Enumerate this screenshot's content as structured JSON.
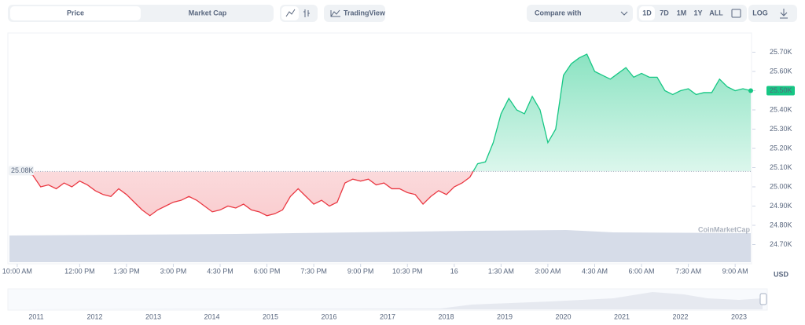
{
  "toolbar": {
    "tabs": [
      "Price",
      "Market Cap"
    ],
    "tradingview": "TradingView",
    "compare": "Compare with",
    "ranges": [
      "1D",
      "7D",
      "1M",
      "1Y",
      "ALL"
    ],
    "log": "LOG"
  },
  "chart_data": {
    "type": "line",
    "values": [
      25070,
      25070,
      25070,
      25060,
      25000,
      25010,
      24990,
      25020,
      25000,
      25030,
      25010,
      24980,
      24960,
      24950,
      24990,
      24960,
      24920,
      24880,
      24850,
      24880,
      24900,
      24920,
      24930,
      24950,
      24930,
      24900,
      24870,
      24880,
      24900,
      24890,
      24910,
      24880,
      24870,
      24850,
      24860,
      24880,
      24950,
      24990,
      24950,
      24910,
      24930,
      24900,
      24920,
      25020,
      25040,
      25030,
      25040,
      25010,
      25020,
      24990,
      24990,
      24970,
      24960,
      24910,
      24950,
      24980,
      24960,
      25000,
      25020,
      25050,
      25120,
      25130,
      25230,
      25380,
      25460,
      25400,
      25380,
      25470,
      25400,
      25230,
      25300,
      25580,
      25640,
      25670,
      25690,
      25600,
      25580,
      25560,
      25590,
      25620,
      25570,
      25590,
      25570,
      25570,
      25500,
      25480,
      25500,
      25510,
      25480,
      25490,
      25490,
      25560,
      25520,
      25500,
      25510,
      25500
    ],
    "xticks": [
      {
        "value": 1,
        "label": "10:00 AM"
      },
      {
        "value": 9,
        "label": "12:00 PM"
      },
      {
        "value": 15,
        "label": "1:30 PM"
      },
      {
        "value": 21,
        "label": "3:00 PM"
      },
      {
        "value": 27,
        "label": "4:30 PM"
      },
      {
        "value": 33,
        "label": "6:00 PM"
      },
      {
        "value": 39,
        "label": "7:30 PM"
      },
      {
        "value": 45,
        "label": "9:00 PM"
      },
      {
        "value": 51,
        "label": "10:30 PM"
      },
      {
        "value": 57,
        "label": "16"
      },
      {
        "value": 63,
        "label": "1:30 AM"
      },
      {
        "value": 69,
        "label": "3:00 AM"
      },
      {
        "value": 75,
        "label": "4:30 AM"
      },
      {
        "value": 81,
        "label": "6:00 AM"
      },
      {
        "value": 87,
        "label": "7:30 AM"
      },
      {
        "value": 93,
        "label": "9:00 AM"
      }
    ],
    "ylim": [
      24600,
      25800
    ],
    "yticks": [
      {
        "value": 24700,
        "label": "24.70K"
      },
      {
        "value": 24800,
        "label": "24.80K"
      },
      {
        "value": 24900,
        "label": "24.90K"
      },
      {
        "value": 25000,
        "label": "25.00K"
      },
      {
        "value": 25100,
        "label": "25.10K"
      },
      {
        "value": 25200,
        "label": "25.20K"
      },
      {
        "value": 25300,
        "label": "25.30K"
      },
      {
        "value": 25400,
        "label": "25.40K"
      },
      {
        "value": 25500,
        "label": "25.50K"
      },
      {
        "value": 25600,
        "label": "25.60K"
      },
      {
        "value": 25700,
        "label": "25.70K"
      }
    ],
    "baseline": {
      "value": 25080,
      "label": "25.08K"
    },
    "current": {
      "value": 25500,
      "label": "25.50K"
    },
    "up_color": "#16c784",
    "down_color": "#ea3943",
    "currency": "USD",
    "watermark": "CoinMarketCap",
    "navigator": [
      "2011",
      "2012",
      "2013",
      "2014",
      "2015",
      "2016",
      "2017",
      "2018",
      "2019",
      "2020",
      "2021",
      "2022",
      "2023"
    ]
  }
}
